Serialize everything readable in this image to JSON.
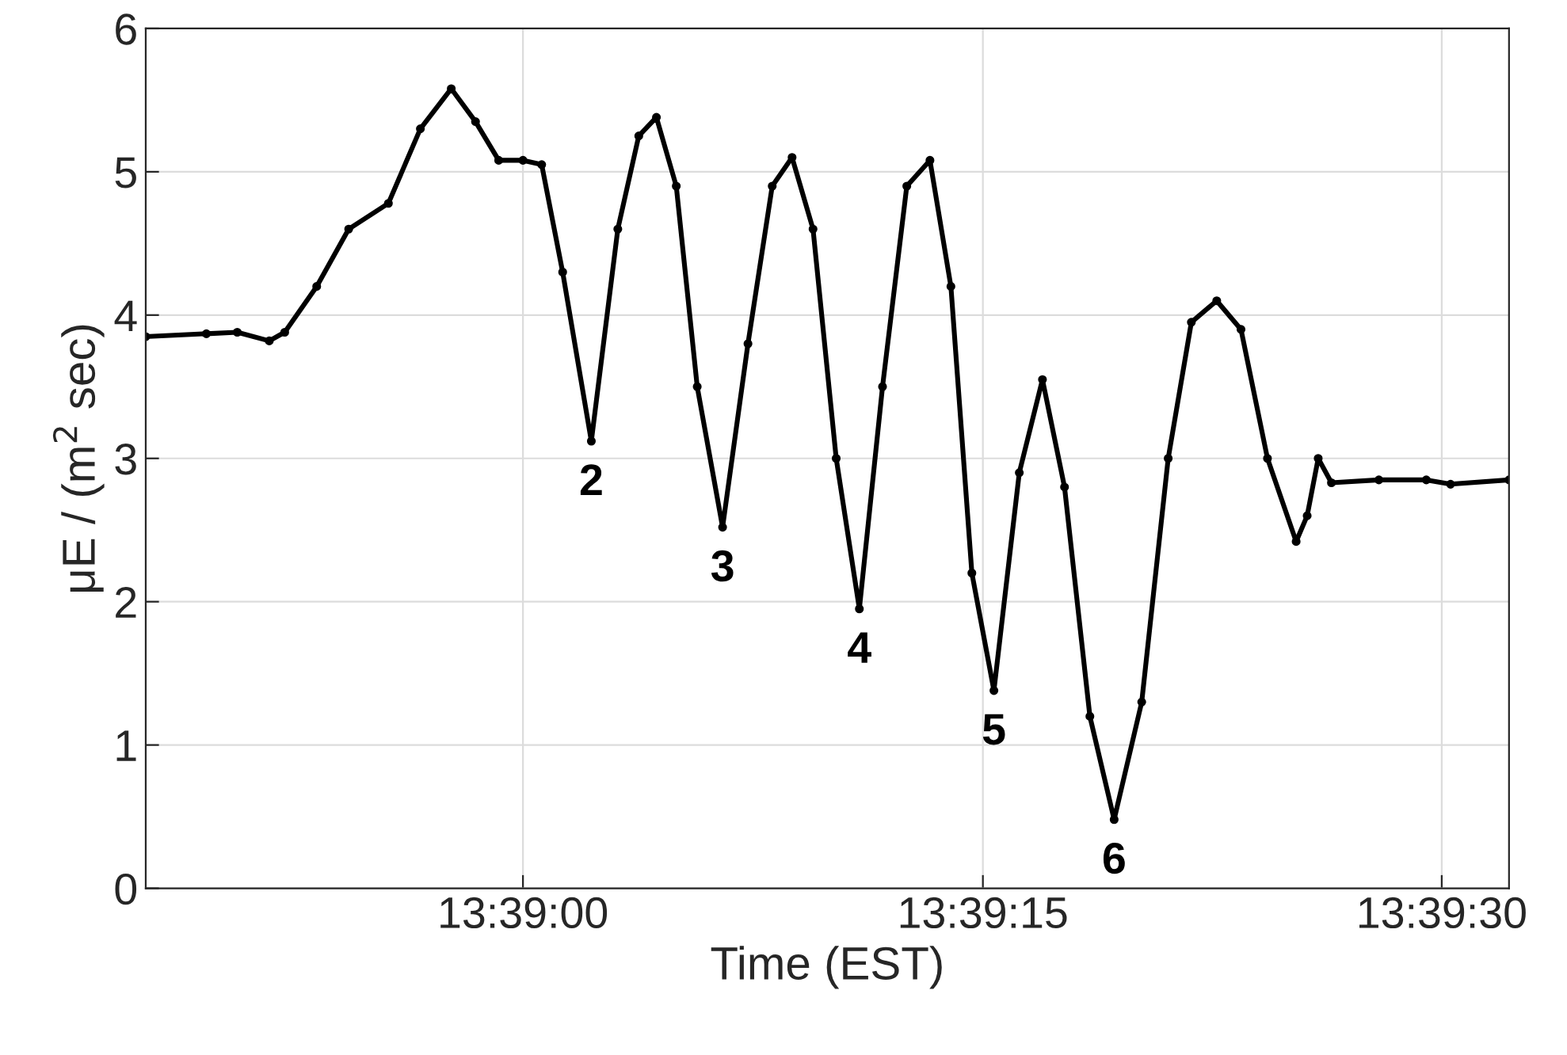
{
  "chart_data": {
    "type": "line",
    "xlabel": "Time (EST)",
    "ylabel": "μE / (m$^{2}$ sec)",
    "x": [
      13.64658,
      13.64713,
      13.64741,
      13.6477,
      13.64784,
      13.64813,
      13.64842,
      13.64878,
      13.64907,
      13.64935,
      13.64957,
      13.64978,
      13.65,
      13.65017,
      13.65036,
      13.65062,
      13.65086,
      13.65105,
      13.65121,
      13.65139,
      13.65158,
      13.65181,
      13.65204,
      13.65226,
      13.65244,
      13.65263,
      13.65284,
      13.65305,
      13.65326,
      13.65348,
      13.65369,
      13.65388,
      13.65407,
      13.65427,
      13.6545,
      13.65471,
      13.65491,
      13.65514,
      13.65536,
      13.65561,
      13.65585,
      13.65606,
      13.65629,
      13.65651,
      13.65675,
      13.65701,
      13.65711,
      13.65721,
      13.65733,
      13.65776,
      13.65819,
      13.65841,
      13.65894
    ],
    "series": [
      {
        "color": "#000000",
        "values": [
          3.85,
          3.87,
          3.88,
          3.82,
          3.88,
          4.2,
          4.6,
          4.78,
          5.3,
          5.58,
          5.35,
          5.08,
          5.08,
          5.05,
          4.3,
          3.12,
          4.6,
          5.25,
          5.38,
          4.9,
          3.5,
          2.52,
          3.8,
          4.9,
          5.1,
          4.6,
          3.0,
          1.95,
          3.5,
          4.9,
          5.08,
          4.2,
          2.2,
          1.38,
          2.9,
          3.55,
          2.8,
          1.2,
          0.48,
          1.3,
          3.0,
          3.95,
          4.1,
          3.9,
          3.0,
          2.42,
          2.6,
          3.0,
          2.83,
          2.85,
          2.85,
          2.82,
          2.85
        ]
      }
    ],
    "xlim": [
      13.64658,
      13.65894
    ],
    "xticks": [
      {
        "value": 13.65,
        "label": "13:39:00"
      },
      {
        "value": 13.65417,
        "label": "13:39:15"
      },
      {
        "value": 13.65833,
        "label": "13:39:30"
      }
    ],
    "ylim": [
      0,
      6
    ],
    "yticks": [
      0,
      1,
      2,
      3,
      4,
      5,
      6
    ],
    "grid": true,
    "marker": "circle",
    "line_style": "solid",
    "annotations": [
      {
        "text": "2",
        "x": 13.65062,
        "y": 3.12
      },
      {
        "text": "3",
        "x": 13.65181,
        "y": 2.52
      },
      {
        "text": "4",
        "x": 13.65305,
        "y": 1.95
      },
      {
        "text": "5",
        "x": 13.65427,
        "y": 1.38
      },
      {
        "text": "6",
        "x": 13.65536,
        "y": 0.48
      }
    ]
  }
}
